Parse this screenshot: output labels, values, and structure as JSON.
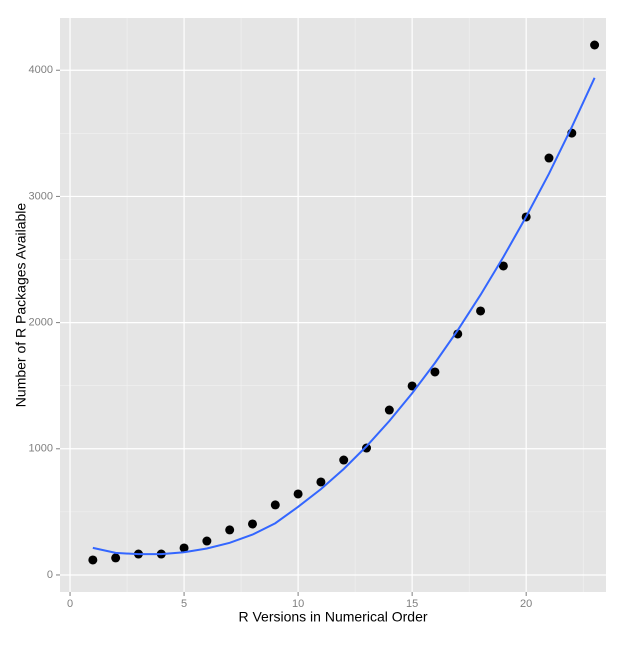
{
  "chart_data": {
    "type": "scatter",
    "x_label": "R Versions in Numerical Order",
    "y_label": "Number of R Packages Available",
    "x": [
      1,
      2,
      3,
      4,
      5,
      6,
      7,
      8,
      9,
      10,
      11,
      12,
      13,
      14,
      15,
      16,
      17,
      18,
      19,
      20,
      21,
      22,
      23
    ],
    "series": [
      {
        "type": "scatter",
        "color": "#000000",
        "values": [
          119,
          135,
          166,
          166,
          214,
          269,
          357,
          404,
          555,
          642,
          737,
          911,
          1006,
          1307,
          1498,
          1609,
          1910,
          2092,
          2449,
          2837,
          3304,
          3502,
          4200
        ]
      },
      {
        "type": "line",
        "color": "#3366ff",
        "values": [
          215,
          175,
          165,
          165,
          180,
          210,
          255,
          320,
          410,
          540,
          680,
          840,
          1020,
          1220,
          1440,
          1680,
          1940,
          2220,
          2520,
          2840,
          3180,
          3550,
          3940
        ]
      }
    ],
    "xlim": [
      -0.44,
      23.5
    ],
    "ylim": [
      -135,
      4414
    ],
    "xticks": [
      0,
      5,
      10,
      15,
      20
    ],
    "yticks": [
      0,
      1000,
      2000,
      3000,
      4000
    ],
    "grid": true
  }
}
